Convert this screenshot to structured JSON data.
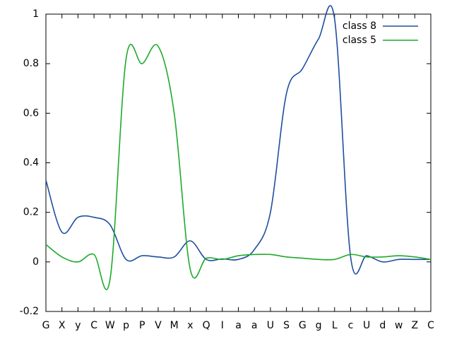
{
  "chart_data": {
    "type": "line",
    "categories": [
      "G",
      "X",
      "y",
      "C",
      "W",
      "p",
      "P",
      "V",
      "M",
      "x",
      "Q",
      "I",
      "a",
      "a",
      "U",
      "S",
      "G",
      "g",
      "L",
      "c",
      "U",
      "d",
      "w",
      "Z",
      "C"
    ],
    "series": [
      {
        "name": "class 8",
        "color": "#1f4e9f",
        "values": [
          0.33,
          0.12,
          0.18,
          0.18,
          0.15,
          0.01,
          0.025,
          0.02,
          0.02,
          0.085,
          0.01,
          0.012,
          0.01,
          0.05,
          0.2,
          0.68,
          0.78,
          0.9,
          0.98,
          0.02,
          0.025,
          0.0,
          0.01,
          0.01,
          0.01
        ]
      },
      {
        "name": "class 5",
        "color": "#1eaa2c",
        "values": [
          0.07,
          0.02,
          0.0,
          0.03,
          -0.07,
          0.82,
          0.8,
          0.87,
          0.6,
          -0.03,
          0.015,
          0.01,
          0.025,
          0.03,
          0.03,
          0.02,
          0.015,
          0.01,
          0.01,
          0.03,
          0.02,
          0.02,
          0.025,
          0.02,
          0.01
        ]
      }
    ],
    "ylim": [
      -0.2,
      1
    ],
    "yticks": [
      -0.2,
      0,
      0.2,
      0.4,
      0.6,
      0.8,
      1
    ],
    "legend": "upper right"
  }
}
